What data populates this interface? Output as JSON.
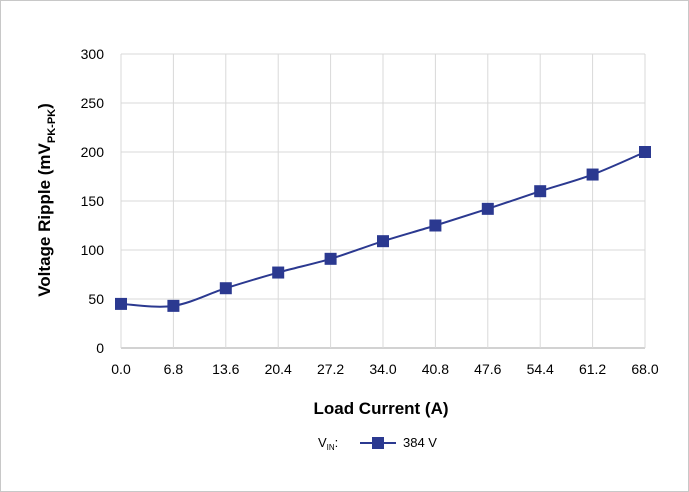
{
  "chart_data": {
    "type": "line",
    "xlabel": "Load Current (A)",
    "ylabel": {
      "main": "Voltage Ripple (mV",
      "subscript": "PK-PK",
      "close": ")"
    },
    "x": [
      0.0,
      6.8,
      13.6,
      20.4,
      27.2,
      34.0,
      40.8,
      47.6,
      54.4,
      61.2,
      68.0
    ],
    "x_tick_labels": [
      "0.0",
      "6.8",
      "13.6",
      "20.4",
      "27.2",
      "34.0",
      "40.8",
      "47.6",
      "54.4",
      "61.2",
      "68.0"
    ],
    "y_ticks": [
      0,
      50,
      100,
      150,
      200,
      250,
      300
    ],
    "ylim": [
      0,
      300
    ],
    "xlim": [
      0.0,
      68.0
    ],
    "grid": true,
    "legend": {
      "prefix_main": "V",
      "prefix_sub": "IN",
      "prefix_suffix": ":",
      "placement": "bottom-center"
    },
    "series": [
      {
        "name": "384 V",
        "color": "#2b3990",
        "marker": "square",
        "values": [
          45,
          43,
          61,
          77,
          91,
          109,
          125,
          142,
          160,
          177,
          200
        ]
      }
    ]
  }
}
